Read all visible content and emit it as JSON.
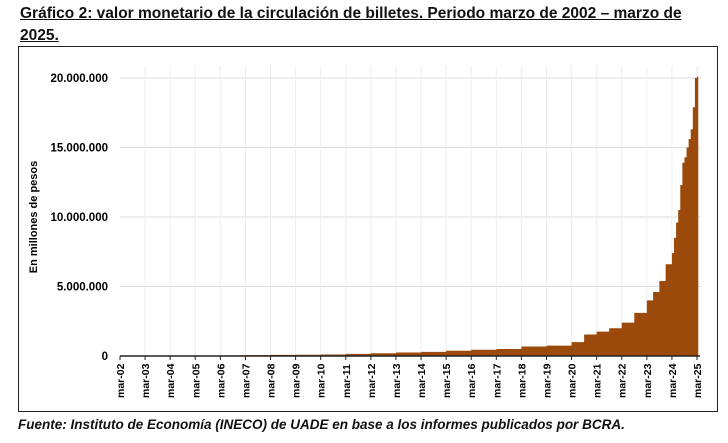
{
  "title": "Gráfico 2: valor monetario de la circulación de billetes. Periodo marzo de 2002 – marzo de 2025.",
  "source": "Fuente: Instituto de Economía (INECO) de UADE en base a los informes publicados por BCRA.",
  "chart_data": {
    "type": "area",
    "title": "",
    "xlabel": "",
    "ylabel": "En millones de pesos",
    "ylim": [
      0,
      20000000
    ],
    "yticks": [
      0,
      5000000,
      10000000,
      15000000,
      20000000
    ],
    "ytick_labels": [
      "0",
      "5.000.000",
      "10.000.000",
      "15.000.000",
      "20.000.000"
    ],
    "xtick_labels": [
      "mar-02",
      "mar-03",
      "mar-04",
      "mar-05",
      "mar-06",
      "mar-07",
      "mar-08",
      "mar-09",
      "mar-10",
      "mar-11",
      "mar-12",
      "mar-13",
      "mar-14",
      "mar-15",
      "mar-16",
      "mar-17",
      "mar-18",
      "mar-19",
      "mar-20",
      "mar-21",
      "mar-22",
      "mar-23",
      "mar-24",
      "mar-25"
    ],
    "grid": true,
    "color": "#9c4a0c",
    "series": [
      {
        "x": [
          "2002-03",
          "2003-03",
          "2004-03",
          "2005-03",
          "2006-03",
          "2007-03",
          "2008-03",
          "2009-03",
          "2010-03",
          "2011-03",
          "2012-03",
          "2013-03",
          "2014-03",
          "2015-03",
          "2016-03",
          "2017-03",
          "2018-03",
          "2019-03",
          "2020-03",
          "2020-09",
          "2021-03",
          "2021-09",
          "2022-03",
          "2022-09",
          "2023-03",
          "2023-06",
          "2023-09",
          "2023-12",
          "2024-03",
          "2024-04",
          "2024-05",
          "2024-06",
          "2024-07",
          "2024-08",
          "2024-09",
          "2024-10",
          "2024-11",
          "2024-12",
          "2025-01",
          "2025-02",
          "2025-03"
        ],
        "values": [
          11000,
          18000,
          28000,
          35000,
          45000,
          60000,
          80000,
          90000,
          110000,
          150000,
          200000,
          250000,
          300000,
          380000,
          450000,
          500000,
          680000,
          750000,
          1000000,
          1550000,
          1750000,
          2000000,
          2400000,
          3100000,
          4000000,
          4600000,
          5400000,
          6600000,
          7400000,
          8500000,
          9600000,
          10500000,
          12300000,
          13900000,
          14300000,
          15000000,
          15600000,
          16300000,
          17900000,
          20000000,
          20100000
        ]
      }
    ]
  }
}
